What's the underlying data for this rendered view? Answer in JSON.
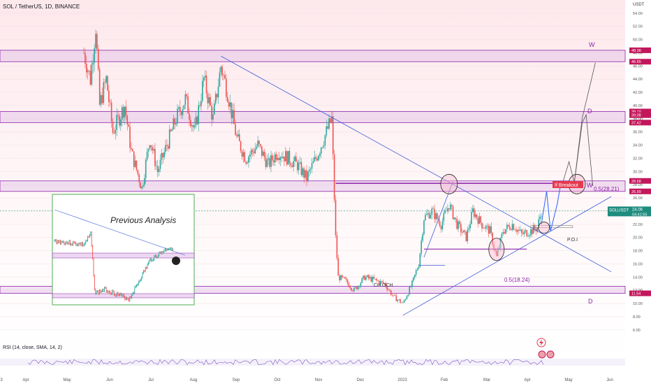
{
  "header": {
    "symbol_title": "SOL / TetherUS, 1D, BINANCE"
  },
  "price_axis": {
    "currency": "USDT",
    "ticks": [
      "54.00",
      "52.00",
      "50.00",
      "48.00",
      "46.00",
      "44.00",
      "42.00",
      "40.00",
      "38.00",
      "36.00",
      "34.00",
      "32.00",
      "30.00",
      "28.00",
      "26.00",
      "24.00",
      "22.00",
      "20.00",
      "18.00",
      "16.00",
      "14.00",
      "12.00",
      "10.00",
      "8.00",
      "6.00"
    ],
    "badges": [
      {
        "label": "48.38",
        "value": 48.38,
        "color": "#c2185b"
      },
      {
        "label": "46.65",
        "value": 46.65,
        "color": "#c2185b"
      },
      {
        "label": "39.10",
        "value": 39.1,
        "color": "#c2185b"
      },
      {
        "label": "39.08",
        "value": 38.55,
        "color": "#c2185b"
      },
      {
        "label": "37.42",
        "value": 37.42,
        "color": "#c2185b"
      },
      {
        "label": "28.58",
        "value": 28.58,
        "color": "#c2185b"
      },
      {
        "label": "26.99",
        "value": 26.99,
        "color": "#c2185b"
      },
      {
        "label": "11.54",
        "value": 11.54,
        "color": "#c2185b"
      }
    ],
    "last_price": {
      "symbol": "SOLUSDT",
      "price": "24.06",
      "countdown": "04:41:55",
      "value": 24.06,
      "color": "#1e8c7e"
    }
  },
  "time_axis": {
    "labels": [
      "3",
      "Apr",
      "May",
      "Jun",
      "Jul",
      "Aug",
      "Sep",
      "Oct",
      "Nov",
      "Dec",
      "2023",
      "Feb",
      "Mar",
      "Apr",
      "May",
      "Jun"
    ]
  },
  "indicator": {
    "label": "RSI (14, close, SMA, 14, 2)"
  },
  "annotations": {
    "previous_analysis": "Previous Analysis",
    "choch": "CH.OCH",
    "fib_upper": "0.5(28.21)",
    "fib_lower": "0.5(18.24)",
    "poi": "P.O.I",
    "breakout": "If Breakout",
    "w_top": "W",
    "d_mid": "D",
    "w_mid": "W",
    "d_low": "D"
  },
  "colors": {
    "up": "#26a69a",
    "down": "#ef5350",
    "zone": "#e1bee7",
    "zone_border": "#8e24aa",
    "trendline": "#3f5fd8",
    "projection": "#2962ff"
  },
  "chart_data": {
    "type": "candlestick",
    "symbol": "SOL / TetherUS",
    "interval": "1D",
    "exchange": "BINANCE",
    "y_unit": "USDT",
    "ylim": [
      4.5,
      56
    ],
    "y_ticks": [
      6,
      8,
      10,
      12,
      14,
      16,
      18,
      20,
      22,
      24,
      26,
      28,
      30,
      32,
      34,
      36,
      38,
      40,
      42,
      44,
      46,
      48,
      50,
      52,
      54
    ],
    "x_period": [
      "2022-03",
      "2023-06"
    ],
    "price_path": [
      {
        "date": "2022-05-01",
        "price": 48
      },
      {
        "date": "2022-05-06",
        "price": 44
      },
      {
        "date": "2022-05-10",
        "price": 52
      },
      {
        "date": "2022-05-13",
        "price": 40
      },
      {
        "date": "2022-05-18",
        "price": 44
      },
      {
        "date": "2022-05-23",
        "price": 36
      },
      {
        "date": "2022-06-01",
        "price": 40
      },
      {
        "date": "2022-06-06",
        "price": 33
      },
      {
        "date": "2022-06-14",
        "price": 27.5
      },
      {
        "date": "2022-06-20",
        "price": 35
      },
      {
        "date": "2022-06-26",
        "price": 30
      },
      {
        "date": "2022-07-03",
        "price": 34
      },
      {
        "date": "2022-07-10",
        "price": 38
      },
      {
        "date": "2022-07-17",
        "price": 41
      },
      {
        "date": "2022-07-24",
        "price": 36
      },
      {
        "date": "2022-07-31",
        "price": 44
      },
      {
        "date": "2022-08-07",
        "price": 38
      },
      {
        "date": "2022-08-13",
        "price": 46
      },
      {
        "date": "2022-08-18",
        "price": 42
      },
      {
        "date": "2022-08-25",
        "price": 35
      },
      {
        "date": "2022-09-01",
        "price": 32
      },
      {
        "date": "2022-09-10",
        "price": 34
      },
      {
        "date": "2022-09-18",
        "price": 31
      },
      {
        "date": "2022-09-25",
        "price": 33
      },
      {
        "date": "2022-10-03",
        "price": 32
      },
      {
        "date": "2022-10-10",
        "price": 31
      },
      {
        "date": "2022-10-17",
        "price": 29
      },
      {
        "date": "2022-10-24",
        "price": 32
      },
      {
        "date": "2022-11-01",
        "price": 36
      },
      {
        "date": "2022-11-05",
        "price": 38
      },
      {
        "date": "2022-11-08",
        "price": 20
      },
      {
        "date": "2022-11-10",
        "price": 14
      },
      {
        "date": "2022-11-15",
        "price": 13.5
      },
      {
        "date": "2022-11-22",
        "price": 12
      },
      {
        "date": "2022-11-30",
        "price": 14
      },
      {
        "date": "2022-12-08",
        "price": 13.5
      },
      {
        "date": "2022-12-15",
        "price": 13
      },
      {
        "date": "2022-12-22",
        "price": 11
      },
      {
        "date": "2022-12-29",
        "price": 10
      },
      {
        "date": "2023-01-05",
        "price": 13
      },
      {
        "date": "2023-01-10",
        "price": 16
      },
      {
        "date": "2023-01-14",
        "price": 23
      },
      {
        "date": "2023-01-20",
        "price": 24
      },
      {
        "date": "2023-01-27",
        "price": 22
      },
      {
        "date": "2023-02-02",
        "price": 25
      },
      {
        "date": "2023-02-08",
        "price": 22
      },
      {
        "date": "2023-02-15",
        "price": 20
      },
      {
        "date": "2023-02-20",
        "price": 24
      },
      {
        "date": "2023-02-27",
        "price": 22
      },
      {
        "date": "2023-03-05",
        "price": 21
      },
      {
        "date": "2023-03-10",
        "price": 17
      },
      {
        "date": "2023-03-15",
        "price": 21
      },
      {
        "date": "2023-03-22",
        "price": 22
      },
      {
        "date": "2023-03-29",
        "price": 20.5
      },
      {
        "date": "2023-04-05",
        "price": 21
      },
      {
        "date": "2023-04-10",
        "price": 21.5
      },
      {
        "date": "2023-04-13",
        "price": 24
      }
    ],
    "zones": [
      {
        "from": 46.65,
        "to": 48.38
      },
      {
        "from": 37.42,
        "to": 39.1
      },
      {
        "from": 26.99,
        "to": 28.58
      },
      {
        "from": 11.54,
        "to": 12.6
      }
    ],
    "levels": [
      {
        "label": "0.5(28.21)",
        "value": 28.21
      },
      {
        "label": "0.5(18.24)",
        "value": 18.24
      },
      {
        "label": "P.O.I",
        "value": 21.5
      },
      {
        "label": "CH.OCH",
        "value": 15.8
      }
    ],
    "legend_position": "top-left",
    "grid": true
  }
}
